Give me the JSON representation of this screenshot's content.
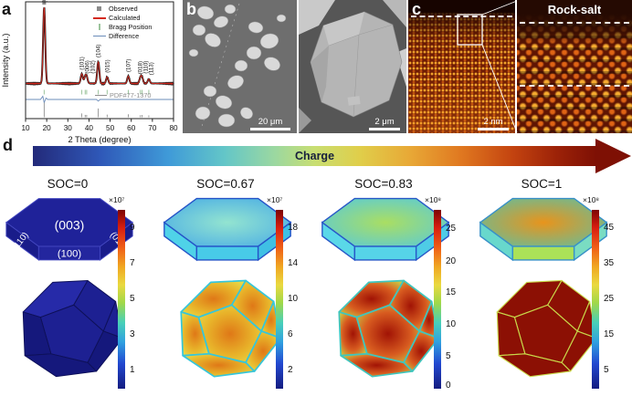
{
  "panel_a": {
    "label": "a",
    "legend": [
      {
        "label": "Observed",
        "color": "#8a8a8a",
        "marker": "square"
      },
      {
        "label": "Calculated",
        "color": "#d42a20",
        "marker": "line"
      },
      {
        "label": "Bragg Position",
        "color": "#9cc49c",
        "marker": "tick"
      },
      {
        "label": "Difference",
        "color": "#6b8cba",
        "marker": "line"
      }
    ],
    "pdf_label": "PDF#77-1370"
  },
  "chart_data": {
    "type": "line",
    "title": "",
    "xlabel": "2 Theta (degree)",
    "ylabel": "Intensity (a.u.)",
    "xlim": [
      10,
      80
    ],
    "x_ticks": [
      10,
      20,
      30,
      40,
      50,
      60,
      70,
      80
    ],
    "series": [
      "Observed",
      "Calculated",
      "Bragg Position",
      "Difference"
    ],
    "reference": "PDF#77-1370",
    "grid": false,
    "legend_position": "upper right",
    "peaks": [
      {
        "hkl": "(003)",
        "two_theta": 18.8,
        "rel_intensity": 1.0
      },
      {
        "hkl": "(101)",
        "two_theta": 36.6,
        "rel_intensity": 0.13
      },
      {
        "hkl": "(006)",
        "two_theta": 38.2,
        "rel_intensity": 0.08
      },
      {
        "hkl": "(102)",
        "two_theta": 38.9,
        "rel_intensity": 0.08
      },
      {
        "hkl": "(104)",
        "two_theta": 44.4,
        "rel_intensity": 0.3
      },
      {
        "hkl": "(015)",
        "two_theta": 48.6,
        "rel_intensity": 0.09
      },
      {
        "hkl": "(107)",
        "two_theta": 58.6,
        "rel_intensity": 0.1
      },
      {
        "hkl": "(018)",
        "two_theta": 64.3,
        "rel_intensity": 0.07
      },
      {
        "hkl": "(110)",
        "two_theta": 65.1,
        "rel_intensity": 0.08
      },
      {
        "hkl": "(113)",
        "two_theta": 68.3,
        "rel_intensity": 0.06
      }
    ]
  },
  "panel_b": {
    "label": "b",
    "left_scale_bar": "20 μm",
    "right_scale_bar": "2 μm"
  },
  "panel_c": {
    "label": "c",
    "scale_bar": "2 nm",
    "annotation": "Rock-salt"
  },
  "panel_d": {
    "label": "d",
    "arrow_label": "Charge",
    "columns": [
      {
        "soc_label": "SOC=0",
        "face_labels": [
          "(003)",
          "(110)",
          "(100)",
          "(010)"
        ],
        "colorbar": {
          "exponent": "×10⁷",
          "ticks": [
            9,
            7,
            5,
            3,
            1
          ]
        },
        "colors": {
          "top": "#1f2299",
          "side": "#191c8a",
          "front": "#23269e",
          "edge": "#4347c0",
          "body_light": "#262aa8",
          "body": "#1d2092",
          "body_dark": "#15187c",
          "body_edge": "#0e1058"
        }
      },
      {
        "soc_label": "SOC=0.67",
        "colorbar": {
          "exponent": "×10⁷",
          "ticks": [
            18,
            14,
            10,
            6,
            2
          ]
        },
        "colors": {
          "top_center": "#93e4d0",
          "top_edge": "#41a6e8",
          "side_left": "#4fd2e8",
          "front": "#48cbe8",
          "side_right": "#3fc0e4",
          "edge": "#2553c8",
          "face_center": "#df7817",
          "face_mid": "#e8b32a",
          "face_edge": "#e9e14c",
          "face_stroke": "#36c6da"
        }
      },
      {
        "soc_label": "SOC=0.83",
        "colorbar": {
          "exponent": "×10⁸",
          "ticks": [
            25,
            20,
            15,
            10,
            5,
            0
          ]
        },
        "colors": {
          "top_center": "#aade62",
          "top_edge": "#4fc8e8",
          "side_left": "#5ad8e8",
          "front": "#56d4e8",
          "side_right": "#4ecce6",
          "edge": "#2858c8",
          "face_center": "#a11305",
          "face_mid": "#d85c20",
          "face_edge": "#c9d949",
          "face_stroke": "#3fc6be"
        }
      },
      {
        "soc_label": "SOC=1",
        "colorbar": {
          "exponent": "×10⁸",
          "ticks": [
            45,
            35,
            25,
            15,
            5
          ]
        },
        "colors": {
          "top_center": "#e8941c",
          "top_edge": "#52c4ae",
          "side_left": "#68d8cc",
          "front": "#abe258",
          "side_right": "#7adcc2",
          "edge": "#3890c8",
          "face": "#8c1004",
          "face_stroke": "#c9d94a"
        }
      }
    ]
  }
}
